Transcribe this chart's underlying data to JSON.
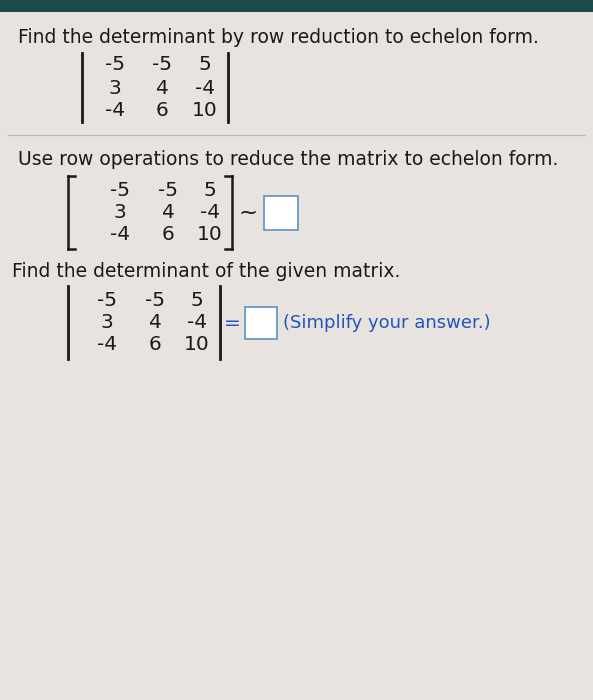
{
  "background_color": "#e8e3de",
  "header_bar_color": "#1d4a4a",
  "title1": "Find the determinant by row reduction to echelon form.",
  "matrix": [
    [
      "-5",
      "-5",
      "5"
    ],
    [
      "3",
      "4",
      "-4"
    ],
    [
      "-4",
      "6",
      "10"
    ]
  ],
  "divider_color": "#bbbbbb",
  "title2": "Use row operations to reduce the matrix to echelon form.",
  "tilde_text": "~",
  "title3": "Find the determinant of the given matrix.",
  "equals_text": "=",
  "simplify_text": "(Simplify your answer.)",
  "text_color": "#1a1a1a",
  "blue_color": "#2255bb",
  "box_color": "#6699cc",
  "font_size_title": 13.5,
  "font_size_matrix": 14.5,
  "font_size_small": 13
}
